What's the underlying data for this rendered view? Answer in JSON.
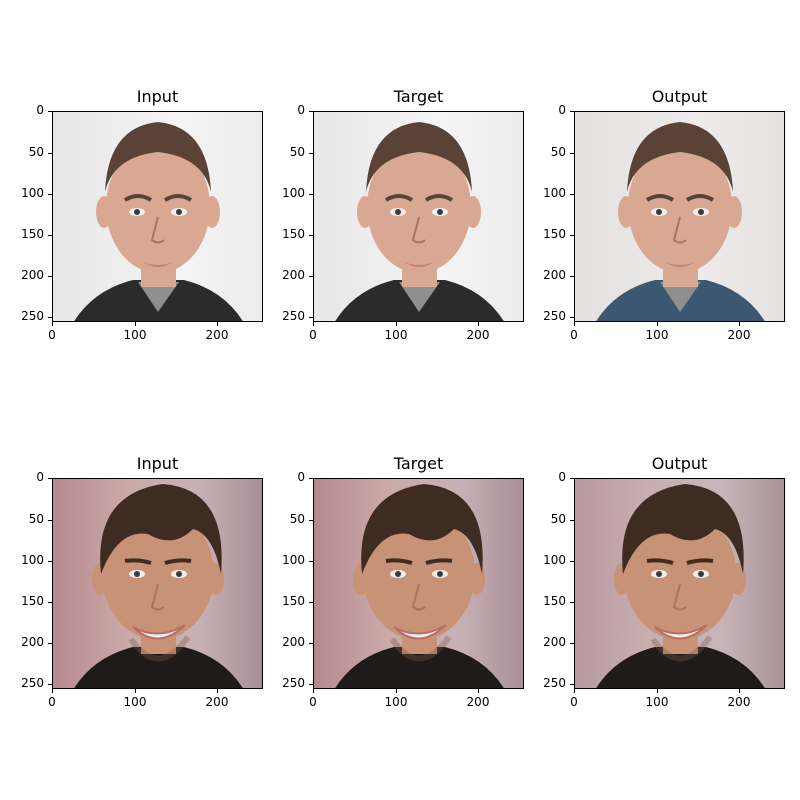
{
  "panels": [
    {
      "title": "Input",
      "image": "young-man-short-hair-photo"
    },
    {
      "title": "Target",
      "image": "young-man-short-hair-photo"
    },
    {
      "title": "Output",
      "image": "young-man-short-hair-reconstruction"
    },
    {
      "title": "Input",
      "image": "smiling-man-dark-hair-photo"
    },
    {
      "title": "Target",
      "image": "smiling-man-dark-hair-photo"
    },
    {
      "title": "Output",
      "image": "smiling-man-dark-hair-reconstruction"
    }
  ],
  "yticks": [
    "0",
    "50",
    "100",
    "150",
    "200",
    "250"
  ],
  "xticks": [
    "0",
    "100",
    "200"
  ]
}
